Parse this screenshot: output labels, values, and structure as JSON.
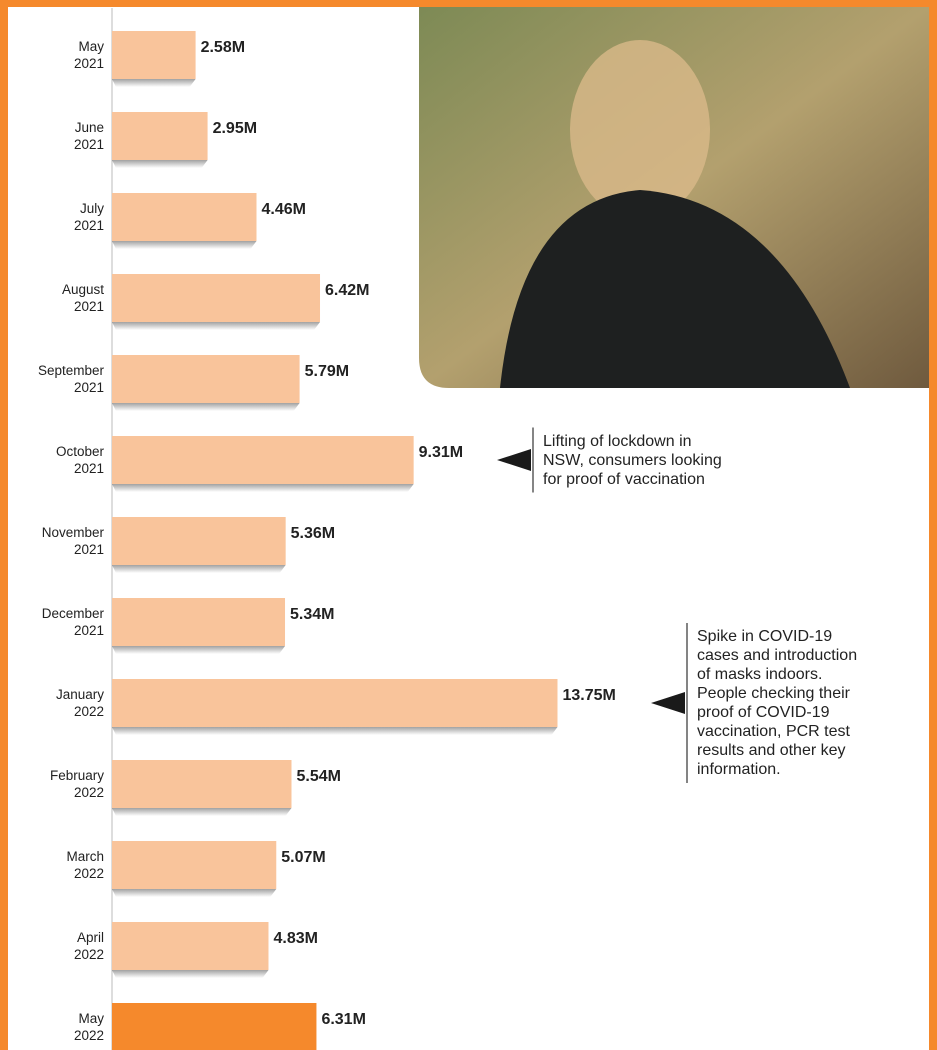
{
  "chart_data": {
    "type": "bar",
    "orientation": "horizontal",
    "categories": [
      "May\n2021",
      "June\n2021",
      "July\n2021",
      "August\n2021",
      "September\n2021",
      "October\n2021",
      "November\n2021",
      "December\n2021",
      "January\n2022",
      "February\n2022",
      "March\n2022",
      "April\n2022",
      "May\n2022"
    ],
    "values": [
      2.58,
      2.95,
      4.46,
      6.42,
      5.79,
      9.31,
      5.36,
      5.34,
      13.75,
      5.54,
      5.07,
      4.83,
      6.31
    ],
    "value_labels": [
      "2.58M",
      "2.95M",
      "4.46M",
      "6.42M",
      "5.79M",
      "9.31M",
      "5.36M",
      "5.34M",
      "13.75M",
      "5.54M",
      "5.07M",
      "4.83M",
      "6.31M"
    ],
    "colors": [
      "#f9c49b",
      "#f9c49b",
      "#f9c49b",
      "#f9c49b",
      "#f9c49b",
      "#f9c49b",
      "#f9c49b",
      "#f9c49b",
      "#f9c49b",
      "#f9c49b",
      "#f9c49b",
      "#f9c49b",
      "#f5892c"
    ],
    "annotations": [
      {
        "category": 5,
        "text": "Lifting of lockdown in\nNSW, consumers looking\nfor proof of vaccination"
      },
      {
        "category": 8,
        "text": "Spike in COVID-19\ncases and introduction\nof masks indoors.\nPeople checking their\nproof of COVID-19\nvaccination, PCR test\nresults and other key\ninformation."
      }
    ]
  }
}
